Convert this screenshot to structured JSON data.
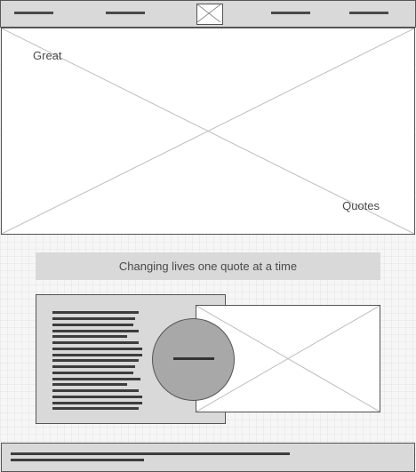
{
  "hero": {
    "text_left": "Great",
    "text_right": "Quotes"
  },
  "tagline": {
    "text": "Changing lives one quote at a time"
  },
  "icons": {
    "logo": "image-placeholder-icon",
    "hero": "image-placeholder-icon",
    "media": "image-placeholder-icon",
    "avatar": "avatar-circle-icon"
  },
  "colors": {
    "panel_gray": "#d9d9d9",
    "border": "#555555",
    "text": "#4a4a4a",
    "avatar_fill": "#a8a8a8",
    "grid_background": "#f6f6f6"
  }
}
